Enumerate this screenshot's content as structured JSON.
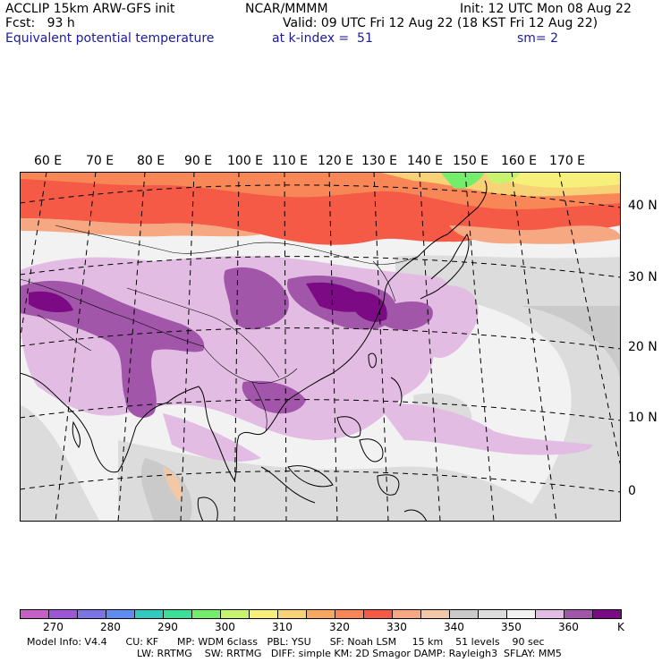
{
  "header": {
    "model": "ACCLIP 15km ARW-GFS init",
    "org": "NCAR/MMMM",
    "init": "Init: 12 UTC Mon 08 Aug 22",
    "fcst": "Fcst:   93 h",
    "valid": "Valid: 09 UTC Fri 12 Aug 22 (18 KST Fri 12 Aug 22)",
    "field": "Equivalent potential temperature",
    "level": "at k-index =  51",
    "smooth": "sm= 2"
  },
  "longitudes": [
    "60 E",
    "70 E",
    "80 E",
    "90 E",
    "100 E",
    "110 E",
    "120 E",
    "130 E",
    "140 E",
    "150 E",
    "160 E",
    "170 E"
  ],
  "latitudes": [
    "40 N",
    "30 N",
    "20 N",
    "10 N",
    "0"
  ],
  "colorbar": {
    "colors": [
      "#c660c6",
      "#9d56d6",
      "#7b74e4",
      "#5f8cf0",
      "#33c8c0",
      "#3ade96",
      "#74ec6c",
      "#c6f46e",
      "#f6f07a",
      "#f8d276",
      "#f6a860",
      "#f88656",
      "#f45a46",
      "#f6a882",
      "#f2c8a6",
      "#cacaca",
      "#dcdcdc",
      "#f2f2f2",
      "#e2bce2",
      "#a256aa",
      "#7c0a84"
    ],
    "labels": [
      "270",
      "280",
      "290",
      "300",
      "310",
      "320",
      "330",
      "340",
      "350",
      "360"
    ],
    "unit": "K"
  },
  "model_info": {
    "line1": "Model Info: V4.4      CU: KF      MP: WDM 6class   PBL: YSU      SF: Noah LSM     15 km    51 levels    90 sec",
    "line2": "LW: RRTMG    SW: RRTMG   DIFF: simple KM: 2D Smagor DAMP: Rayleigh3  SFLAY: MM5"
  }
}
